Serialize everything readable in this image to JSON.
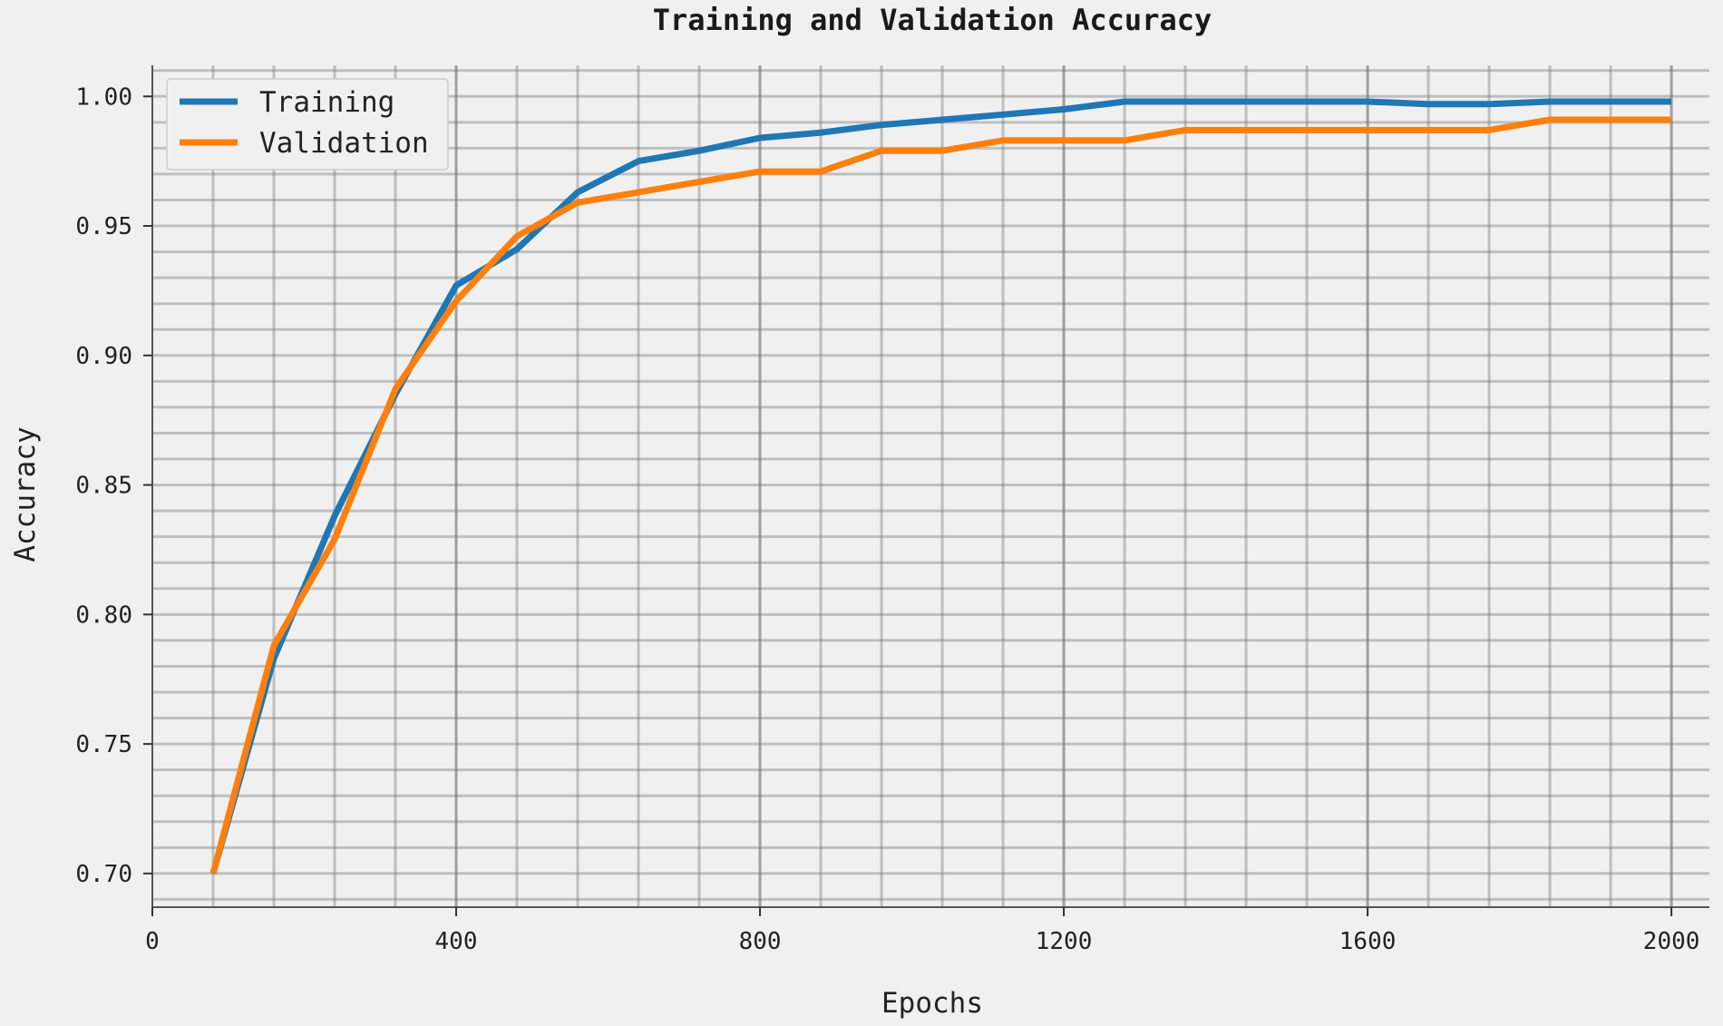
{
  "chart_data": {
    "type": "line",
    "title": "Training and Validation Accuracy",
    "xlabel": "Epochs",
    "ylabel": "Accuracy",
    "xlim": [
      0,
      2050
    ],
    "ylim": [
      0.687,
      1.012
    ],
    "x_ticks": [
      0,
      400,
      800,
      1200,
      1600,
      2000
    ],
    "x_tick_labels": [
      "0",
      "400",
      "800",
      "1200",
      "1600",
      "2000"
    ],
    "y_ticks": [
      0.7,
      0.75,
      0.8,
      0.85,
      0.9,
      0.95,
      1.0
    ],
    "y_tick_labels": [
      "0.70",
      "0.75",
      "0.80",
      "0.85",
      "0.90",
      "0.95",
      "1.00"
    ],
    "x_minor_step": 80,
    "y_minor_step": 0.01,
    "grid": true,
    "legend_position": "top-left",
    "x": [
      80,
      160,
      240,
      320,
      400,
      480,
      560,
      640,
      720,
      800,
      880,
      960,
      1040,
      1120,
      1200,
      1280,
      1360,
      1440,
      1520,
      1600,
      1680,
      1760,
      1840,
      1920,
      2000
    ],
    "series": [
      {
        "name": "Training",
        "color": "#1f77b4",
        "values": [
          0.7,
          0.783,
          0.838,
          0.885,
          0.927,
          0.941,
          0.963,
          0.975,
          0.979,
          0.984,
          0.986,
          0.989,
          0.991,
          0.993,
          0.995,
          0.998,
          0.998,
          0.998,
          0.998,
          0.998,
          0.997,
          0.997,
          0.998,
          0.998,
          0.998
        ]
      },
      {
        "name": "Validation",
        "color": "#ff7f0e",
        "values": [
          0.7,
          0.788,
          0.829,
          0.887,
          0.921,
          0.946,
          0.959,
          0.963,
          0.967,
          0.971,
          0.971,
          0.979,
          0.979,
          0.983,
          0.983,
          0.983,
          0.987,
          0.987,
          0.987,
          0.987,
          0.987,
          0.987,
          0.991,
          0.991,
          0.991
        ]
      }
    ]
  }
}
